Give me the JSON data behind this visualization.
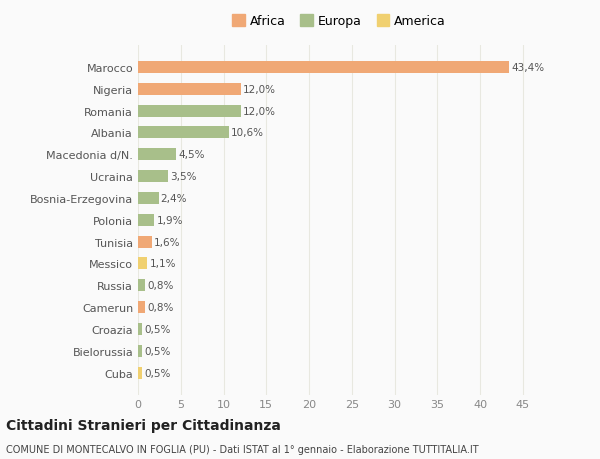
{
  "countries": [
    "Marocco",
    "Nigeria",
    "Romania",
    "Albania",
    "Macedonia d/N.",
    "Ucraina",
    "Bosnia-Erzegovina",
    "Polonia",
    "Tunisia",
    "Messico",
    "Russia",
    "Camerun",
    "Croazia",
    "Bielorussia",
    "Cuba"
  ],
  "values": [
    43.4,
    12.0,
    12.0,
    10.6,
    4.5,
    3.5,
    2.4,
    1.9,
    1.6,
    1.1,
    0.8,
    0.8,
    0.5,
    0.5,
    0.5
  ],
  "labels": [
    "43,4%",
    "12,0%",
    "12,0%",
    "10,6%",
    "4,5%",
    "3,5%",
    "2,4%",
    "1,9%",
    "1,6%",
    "1,1%",
    "0,8%",
    "0,8%",
    "0,5%",
    "0,5%",
    "0,5%"
  ],
  "continents": [
    "Africa",
    "Africa",
    "Europa",
    "Europa",
    "Europa",
    "Europa",
    "Europa",
    "Europa",
    "Africa",
    "America",
    "Europa",
    "Africa",
    "Europa",
    "Europa",
    "America"
  ],
  "colors": {
    "Africa": "#F0A875",
    "Europa": "#A8BF8A",
    "America": "#F0D070"
  },
  "background_color": "#FAFAFA",
  "grid_color": "#E8E8E0",
  "title": "Cittadini Stranieri per Cittadinanza",
  "subtitle": "COMUNE DI MONTECALVO IN FOGLIA (PU) - Dati ISTAT al 1° gennaio - Elaborazione TUTTITALIA.IT",
  "xlim": [
    0,
    47
  ],
  "xticks": [
    0,
    5,
    10,
    15,
    20,
    25,
    30,
    35,
    40,
    45
  ],
  "bar_height": 0.55,
  "legend_order": [
    "Africa",
    "Europa",
    "America"
  ]
}
